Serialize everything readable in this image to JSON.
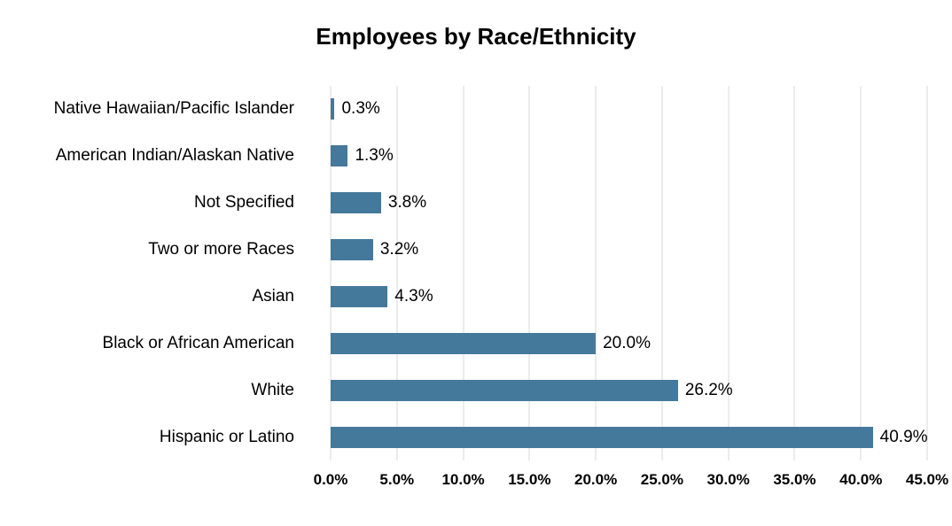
{
  "chart_data": {
    "type": "bar",
    "orientation": "horizontal",
    "title": "Employees by Race/Ethnicity",
    "categories": [
      "Native Hawaiian/Pacific Islander",
      "American Indian/Alaskan Native",
      "Not Specified",
      "Two or more Races",
      "Asian",
      "Black or African American",
      "White",
      "Hispanic or Latino"
    ],
    "values": [
      0.3,
      1.3,
      3.8,
      3.2,
      4.3,
      20.0,
      26.2,
      40.9
    ],
    "data_labels": [
      "0.3%",
      "1.3%",
      "3.8%",
      "3.2%",
      "4.3%",
      "20.0%",
      "26.2%",
      "40.9%"
    ],
    "x_ticks": [
      "0.0%",
      "5.0%",
      "10.0%",
      "15.0%",
      "20.0%",
      "25.0%",
      "30.0%",
      "35.0%",
      "40.0%",
      "45.0%"
    ],
    "x_tick_values": [
      0,
      5,
      10,
      15,
      20,
      25,
      30,
      35,
      40,
      45
    ],
    "xlim": [
      0,
      45
    ],
    "xlabel": "",
    "ylabel": "",
    "grid": true,
    "legend": "none",
    "colors": {
      "bar": "#44799B",
      "gridline": "#D9D9D9",
      "text": "#000000",
      "background": "#FFFFFF"
    }
  }
}
